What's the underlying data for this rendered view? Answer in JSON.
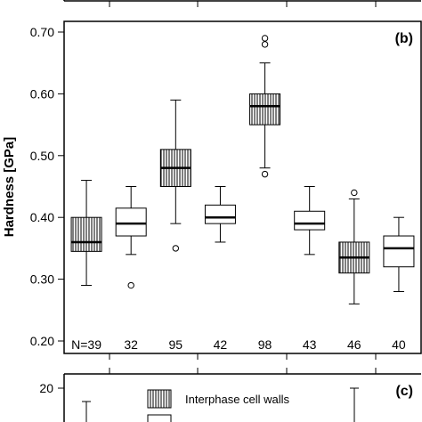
{
  "chart_data": [
    {
      "type": "boxplot",
      "panel_label": "(b)",
      "ylabel": "Hardness [GPa]",
      "ylim": [
        0.2,
        0.72
      ],
      "yticks": [
        "0.20",
        "0.30",
        "0.40",
        "0.50",
        "0.60",
        "0.70"
      ],
      "ytick_values": [
        0.2,
        0.3,
        0.4,
        0.5,
        0.6,
        0.7
      ],
      "boxes": [
        {
          "n_label": "N=39",
          "pattern": "hatched",
          "whisker_low": 0.29,
          "q1": 0.345,
          "median": 0.36,
          "q3": 0.4,
          "whisker_high": 0.46,
          "outliers": []
        },
        {
          "n_label": "32",
          "pattern": "plain",
          "whisker_low": 0.34,
          "q1": 0.37,
          "median": 0.39,
          "q3": 0.415,
          "whisker_high": 0.45,
          "outliers": [
            0.29
          ]
        },
        {
          "n_label": "95",
          "pattern": "hatched",
          "whisker_low": 0.39,
          "q1": 0.45,
          "median": 0.48,
          "q3": 0.51,
          "whisker_high": 0.59,
          "outliers": [
            0.35
          ]
        },
        {
          "n_label": "42",
          "pattern": "plain",
          "whisker_low": 0.36,
          "q1": 0.39,
          "median": 0.4,
          "q3": 0.42,
          "whisker_high": 0.45,
          "outliers": []
        },
        {
          "n_label": "98",
          "pattern": "hatched",
          "whisker_low": 0.48,
          "q1": 0.55,
          "median": 0.58,
          "q3": 0.6,
          "whisker_high": 0.65,
          "outliers": [
            0.47,
            0.68,
            0.69
          ]
        },
        {
          "n_label": "43",
          "pattern": "plain",
          "whisker_low": 0.34,
          "q1": 0.38,
          "median": 0.39,
          "q3": 0.41,
          "whisker_high": 0.45,
          "outliers": []
        },
        {
          "n_label": "46",
          "pattern": "hatched",
          "whisker_low": 0.26,
          "q1": 0.31,
          "median": 0.335,
          "q3": 0.36,
          "whisker_high": 0.43,
          "outliers": [
            0.44
          ]
        },
        {
          "n_label": "40",
          "pattern": "plain",
          "whisker_low": 0.28,
          "q1": 0.32,
          "median": 0.35,
          "q3": 0.37,
          "whisker_high": 0.4,
          "outliers": []
        }
      ]
    },
    {
      "type": "boxplot",
      "panel_label": "(c)",
      "yticks": [
        "20"
      ],
      "ytick_values": [
        20
      ],
      "legend": {
        "position": "top-center",
        "entries": [
          {
            "label": "Interphase cell walls",
            "pattern": "hatched"
          },
          {
            "label": "",
            "pattern": "plain"
          }
        ]
      }
    }
  ],
  "colors": {
    "ink": "#000000",
    "background": "#ffffff"
  }
}
